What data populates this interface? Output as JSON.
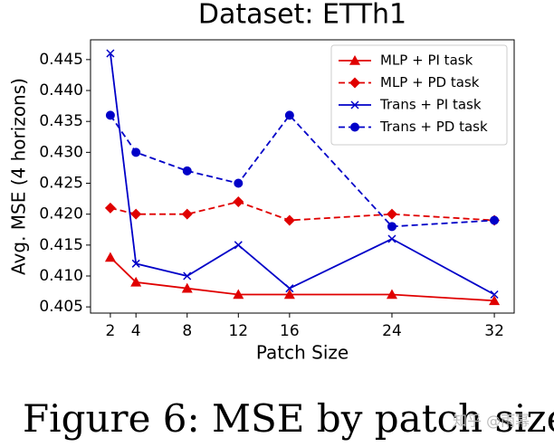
{
  "chart_data": {
    "type": "line",
    "title": "Dataset: ETTh1",
    "x_label": "Patch Size",
    "y_label": "Avg. MSE (4 horizons)",
    "x": [
      2,
      4,
      8,
      12,
      16,
      24,
      32
    ],
    "series": [
      {
        "name": "MLP + PI task",
        "color": "#e00000",
        "linestyle": "solid",
        "marker": "triangle",
        "values": [
          0.413,
          0.409,
          0.408,
          0.407,
          0.407,
          0.407,
          0.406
        ]
      },
      {
        "name": "MLP + PD task",
        "color": "#e00000",
        "linestyle": "dashed",
        "marker": "diamond",
        "values": [
          0.421,
          0.42,
          0.42,
          0.422,
          0.419,
          0.42,
          0.419
        ]
      },
      {
        "name": "Trans + PI task",
        "color": "#0000c8",
        "linestyle": "solid",
        "marker": "x",
        "values": [
          0.446,
          0.412,
          0.41,
          0.415,
          0.408,
          0.416,
          0.407
        ]
      },
      {
        "name": "Trans + PD task",
        "color": "#0000c8",
        "linestyle": "dashed",
        "marker": "circle",
        "values": [
          0.436,
          0.43,
          0.427,
          0.425,
          0.436,
          0.418,
          0.419
        ]
      }
    ],
    "xlim": [
      0.45,
      33.55
    ],
    "ylim": [
      0.404,
      0.4482
    ],
    "xticks": [
      2,
      4,
      8,
      12,
      16,
      24,
      32
    ],
    "yticks": [
      0.405,
      {
        "value": 0.41,
        "label": "0.410"
      },
      0.415,
      {
        "value": 0.42,
        "label": "0.420"
      },
      0.425,
      {
        "value": 0.43,
        "label": "0.430"
      },
      0.435,
      {
        "value": 0.44,
        "label": "0.440"
      },
      0.445
    ],
    "grid": false,
    "legend": "upper right"
  },
  "caption": "Figure 6: MSE by patch size.",
  "watermark": "知乎 @雨幂"
}
